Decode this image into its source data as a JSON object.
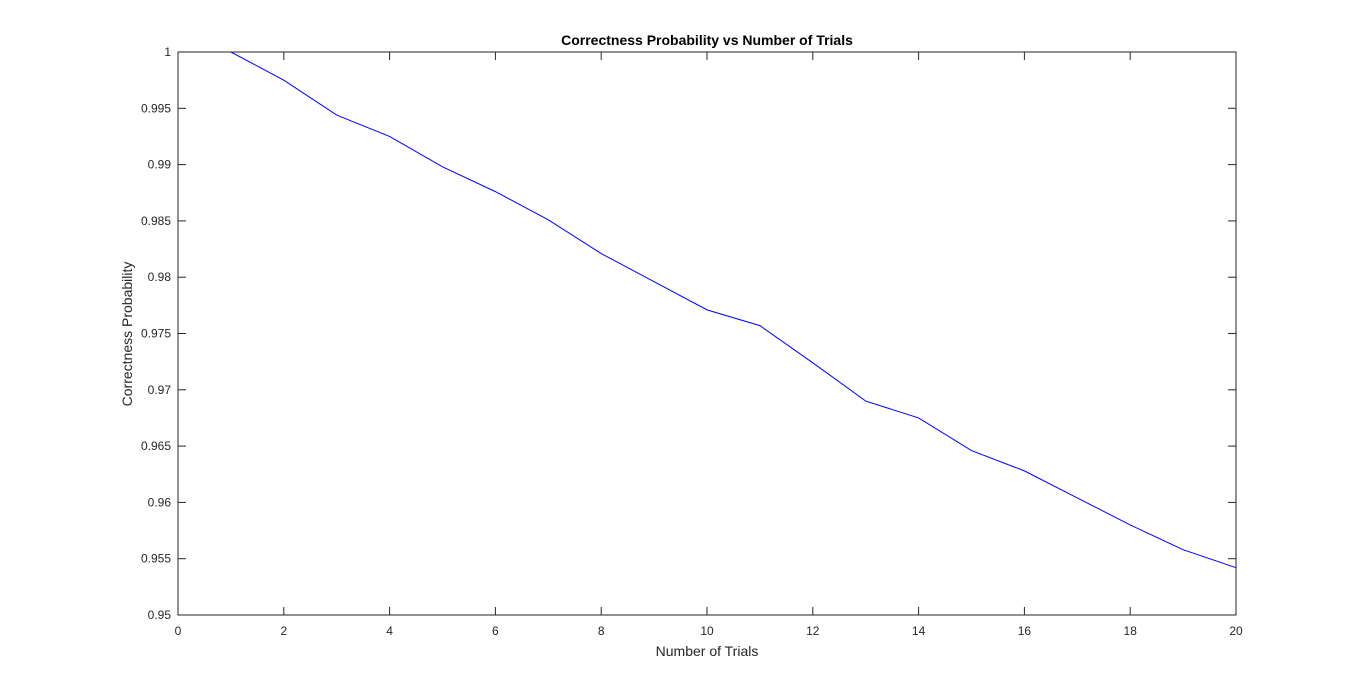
{
  "chart_data": {
    "type": "line",
    "title": "Correctness Probability vs Number of Trials",
    "xlabel": "Number of Trials",
    "ylabel": "Correctness Probability",
    "xlim": [
      0,
      20
    ],
    "ylim": [
      0.95,
      1
    ],
    "xticks": [
      "0",
      "2",
      "4",
      "6",
      "8",
      "10",
      "12",
      "14",
      "16",
      "18",
      "20"
    ],
    "yticks": [
      "0.95",
      "0.955",
      "0.96",
      "0.965",
      "0.97",
      "0.975",
      "0.98",
      "0.985",
      "0.99",
      "0.995",
      "1"
    ],
    "grid": false,
    "series": [
      {
        "color": "#0000ff",
        "x": [
          1,
          2,
          3,
          4,
          5,
          6,
          7,
          8,
          9,
          10,
          11,
          12,
          13,
          14,
          15,
          16,
          17,
          18,
          19,
          20
        ],
        "y": [
          1.0,
          0.9975,
          0.9944,
          0.9925,
          0.9898,
          0.9876,
          0.9851,
          0.9821,
          0.9796,
          0.9771,
          0.9757,
          0.9724,
          0.969,
          0.9675,
          0.9646,
          0.9628,
          0.9604,
          0.958,
          0.9558,
          0.9542
        ]
      }
    ]
  }
}
